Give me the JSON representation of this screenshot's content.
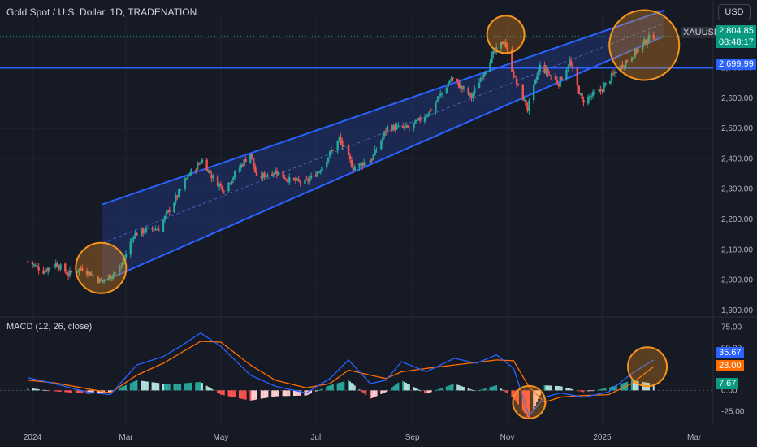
{
  "header": {
    "title": "Gold Spot / U.S. Dollar, 1D, TRADENATION",
    "currency_button": "USD"
  },
  "price_tags": {
    "symbol": "XAUUSD",
    "last_price": "2,804.85",
    "countdown": "08:48:17",
    "level": "2,699.99"
  },
  "macd_panel": {
    "label": "MACD (12, 26, close)",
    "macd_value": "35.67",
    "signal_value": "28.00",
    "hist_value": "7.67"
  },
  "colors": {
    "background": "#161a25",
    "up": "#26a69a",
    "down": "#ef5350",
    "channel_line": "#2962ff",
    "channel_fill": "#1e3a8a",
    "highlight": "#f7931a",
    "macd_line": "#2962ff",
    "signal_line": "#ff6d00"
  },
  "chart_data": [
    {
      "type": "candlestick",
      "title": "Gold Spot / U.S. Dollar, 1D, TRADENATION",
      "x_tick_labels": [
        "2024",
        "Mar",
        "May",
        "Jul",
        "Sep",
        "Nov",
        "2025",
        "Mar"
      ],
      "y_tick_labels": [
        "2,000.00",
        "2,100.00",
        "2,200.00",
        "2,300.00",
        "2,400.00",
        "2,500.00",
        "2,600.00",
        "2,700.00",
        "1,900.00"
      ],
      "ylim": [
        1900,
        2870
      ],
      "close_path": [
        [
          "2023-12-29",
          2062
        ],
        [
          "2024-01-08",
          2030
        ],
        [
          "2024-01-16",
          2055
        ],
        [
          "2024-01-24",
          2020
        ],
        [
          "2024-02-02",
          2040
        ],
        [
          "2024-02-14",
          1995
        ],
        [
          "2024-02-26",
          2035
        ],
        [
          "2024-03-06",
          2150
        ],
        [
          "2024-03-14",
          2165
        ],
        [
          "2024-03-22",
          2170
        ],
        [
          "2024-04-01",
          2260
        ],
        [
          "2024-04-10",
          2345
        ],
        [
          "2024-04-19",
          2395
        ],
        [
          "2024-04-26",
          2335
        ],
        [
          "2024-05-03",
          2300
        ],
        [
          "2024-05-20",
          2420
        ],
        [
          "2024-05-24",
          2335
        ],
        [
          "2024-06-05",
          2360
        ],
        [
          "2024-06-14",
          2330
        ],
        [
          "2024-06-24",
          2320
        ],
        [
          "2024-07-03",
          2360
        ],
        [
          "2024-07-16",
          2465
        ],
        [
          "2024-07-25",
          2370
        ],
        [
          "2024-08-06",
          2400
        ],
        [
          "2024-08-16",
          2505
        ],
        [
          "2024-08-30",
          2500
        ],
        [
          "2024-09-12",
          2555
        ],
        [
          "2024-09-26",
          2665
        ],
        [
          "2024-10-09",
          2605
        ],
        [
          "2024-10-21",
          2730
        ],
        [
          "2024-10-30",
          2790
        ],
        [
          "2024-11-06",
          2660
        ],
        [
          "2024-11-14",
          2565
        ],
        [
          "2024-11-22",
          2705
        ],
        [
          "2024-12-04",
          2650
        ],
        [
          "2024-12-11",
          2720
        ],
        [
          "2024-12-19",
          2590
        ],
        [
          "2024-12-31",
          2625
        ],
        [
          "2025-01-10",
          2690
        ],
        [
          "2025-01-21",
          2745
        ],
        [
          "2025-01-30",
          2795
        ],
        [
          "2025-02-03",
          2805
        ]
      ],
      "horizontal_level": 2699.99,
      "last_price": 2804.85,
      "channel": {
        "upper": [
          [
            "2024-02-15",
            2250
          ],
          [
            "2025-02-10",
            2890
          ]
        ],
        "lower": [
          [
            "2024-02-15",
            1995
          ],
          [
            "2025-02-10",
            2805
          ]
        ]
      },
      "highlight_circles": [
        "2024-02-14",
        "2024-10-31",
        "2025-01-28"
      ]
    },
    {
      "type": "macd",
      "title": "MACD (12, 26, close)",
      "y_tick_labels": [
        "75.00",
        "50.00",
        "0.00",
        "-25.00"
      ],
      "ylim": [
        -40,
        82
      ],
      "macd": [
        [
          "2023-12-29",
          15
        ],
        [
          "2024-01-15",
          8
        ],
        [
          "2024-02-05",
          -2
        ],
        [
          "2024-02-20",
          -5
        ],
        [
          "2024-03-08",
          30
        ],
        [
          "2024-03-25",
          40
        ],
        [
          "2024-04-05",
          52
        ],
        [
          "2024-04-18",
          68
        ],
        [
          "2024-05-01",
          52
        ],
        [
          "2024-05-20",
          18
        ],
        [
          "2024-06-05",
          5
        ],
        [
          "2024-06-25",
          -3
        ],
        [
          "2024-07-10",
          14
        ],
        [
          "2024-07-22",
          36
        ],
        [
          "2024-08-05",
          8
        ],
        [
          "2024-08-15",
          12
        ],
        [
          "2024-08-25",
          34
        ],
        [
          "2024-09-10",
          22
        ],
        [
          "2024-09-28",
          38
        ],
        [
          "2024-10-12",
          32
        ],
        [
          "2024-10-25",
          42
        ],
        [
          "2024-11-05",
          26
        ],
        [
          "2024-11-15",
          -30
        ],
        [
          "2024-11-25",
          -8
        ],
        [
          "2024-12-05",
          -3
        ],
        [
          "2024-12-20",
          -8
        ],
        [
          "2025-01-05",
          -2
        ],
        [
          "2025-01-20",
          20
        ],
        [
          "2025-02-03",
          36
        ]
      ],
      "signal": [
        [
          "2023-12-29",
          12
        ],
        [
          "2024-01-15",
          9
        ],
        [
          "2024-02-05",
          2
        ],
        [
          "2024-02-20",
          -3
        ],
        [
          "2024-03-08",
          18
        ],
        [
          "2024-03-25",
          32
        ],
        [
          "2024-04-05",
          44
        ],
        [
          "2024-04-18",
          58
        ],
        [
          "2024-05-01",
          57
        ],
        [
          "2024-05-20",
          30
        ],
        [
          "2024-06-05",
          12
        ],
        [
          "2024-06-25",
          3
        ],
        [
          "2024-07-10",
          8
        ],
        [
          "2024-07-22",
          24
        ],
        [
          "2024-08-05",
          18
        ],
        [
          "2024-08-15",
          14
        ],
        [
          "2024-08-25",
          22
        ],
        [
          "2024-09-10",
          26
        ],
        [
          "2024-09-28",
          30
        ],
        [
          "2024-10-12",
          33
        ],
        [
          "2024-10-25",
          36
        ],
        [
          "2024-11-05",
          35
        ],
        [
          "2024-11-15",
          4
        ],
        [
          "2024-11-25",
          -14
        ],
        [
          "2024-12-05",
          -8
        ],
        [
          "2024-12-20",
          -6
        ],
        [
          "2025-01-05",
          -5
        ],
        [
          "2025-01-20",
          8
        ],
        [
          "2025-02-03",
          28
        ]
      ],
      "last_macd": 35.67,
      "last_signal": 28.0,
      "last_histogram": 7.67,
      "highlight_circles": [
        "2024-11-15",
        "2025-01-30"
      ]
    }
  ]
}
